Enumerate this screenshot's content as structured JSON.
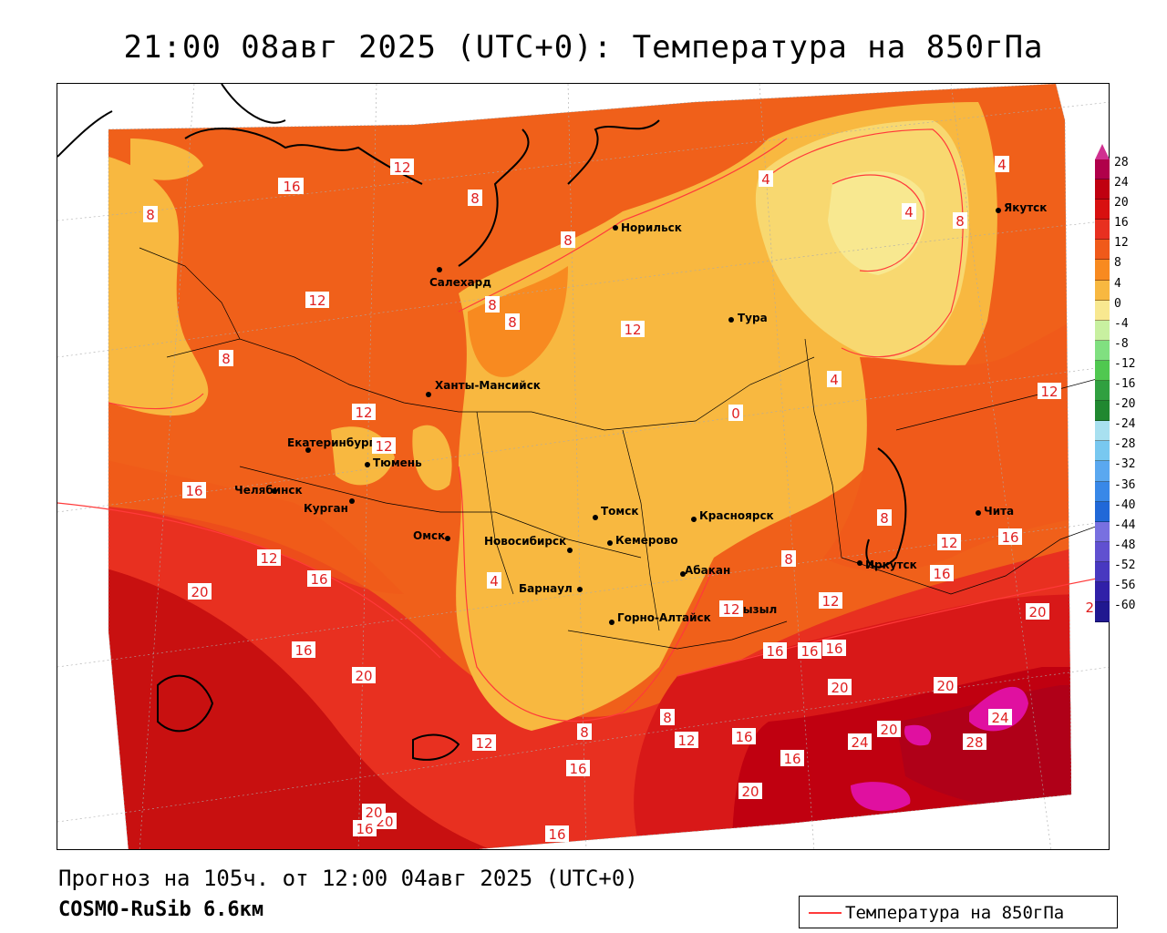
{
  "title": "21:00 08авг 2025 (UTC+0): Температура на 850гПа",
  "footer": {
    "forecast": "Прогноз на 105ч. от 12:00 04авг 2025 (UTC+0)",
    "model": "COSMO-RuSib 6.6км"
  },
  "legend": {
    "label": "Температура на 850гПа",
    "color": "#ff3a3a"
  },
  "colorbar": {
    "levels": [
      "28",
      "24",
      "20",
      "16",
      "12",
      "8",
      "4",
      "0",
      "-4",
      "-8",
      "-12",
      "-16",
      "-20",
      "-24",
      "-28",
      "-32",
      "-36",
      "-40",
      "-44",
      "-48",
      "-52",
      "-56",
      "-60"
    ],
    "colors": [
      "#b0004a",
      "#c00010",
      "#d81010",
      "#e83020",
      "#f05a1a",
      "#f88a20",
      "#f8b840",
      "#f8e890",
      "#c8f0a0",
      "#80e080",
      "#50c850",
      "#30a040",
      "#208830",
      "#a8e0f0",
      "#78c8f0",
      "#5aa8f0",
      "#3888e8",
      "#2068d8",
      "#7870e0",
      "#6050d0",
      "#4838c0",
      "#3020a8",
      "#201890"
    ]
  },
  "cities": [
    {
      "name": "Норильск"
    },
    {
      "name": "Якутск"
    },
    {
      "name": "Салехард"
    },
    {
      "name": "Тура"
    },
    {
      "name": "Ханты-Мансийск"
    },
    {
      "name": "Екатеринбург"
    },
    {
      "name": "Тюмень"
    },
    {
      "name": "Челябинск"
    },
    {
      "name": "Курган"
    },
    {
      "name": "Омск"
    },
    {
      "name": "Томск"
    },
    {
      "name": "Красноярск"
    },
    {
      "name": "Новосибирск"
    },
    {
      "name": "Кемерово"
    },
    {
      "name": "Абакан"
    },
    {
      "name": "Барнаул"
    },
    {
      "name": "Горно-Алтайск"
    },
    {
      "name": "Кызыл"
    },
    {
      "name": "Иркутск"
    },
    {
      "name": "Чита"
    }
  ],
  "contour_labels": [
    "12",
    "16",
    "8",
    "12",
    "12",
    "8",
    "8",
    "8",
    "8",
    "8",
    "12",
    "12",
    "12",
    "16",
    "12",
    "16",
    "20",
    "16",
    "20",
    "12",
    "8",
    "12",
    "16",
    "16",
    "16",
    "20",
    "20",
    "24",
    "20",
    "24",
    "28",
    "20",
    "16",
    "16",
    "20",
    "16",
    "8",
    "4",
    "4",
    "0",
    "4",
    "8",
    "4",
    "4",
    "8",
    "12",
    "8",
    "12",
    "16",
    "16",
    "12",
    "12",
    "16",
    "20",
    "20",
    "16",
    "16",
    "20"
  ]
}
